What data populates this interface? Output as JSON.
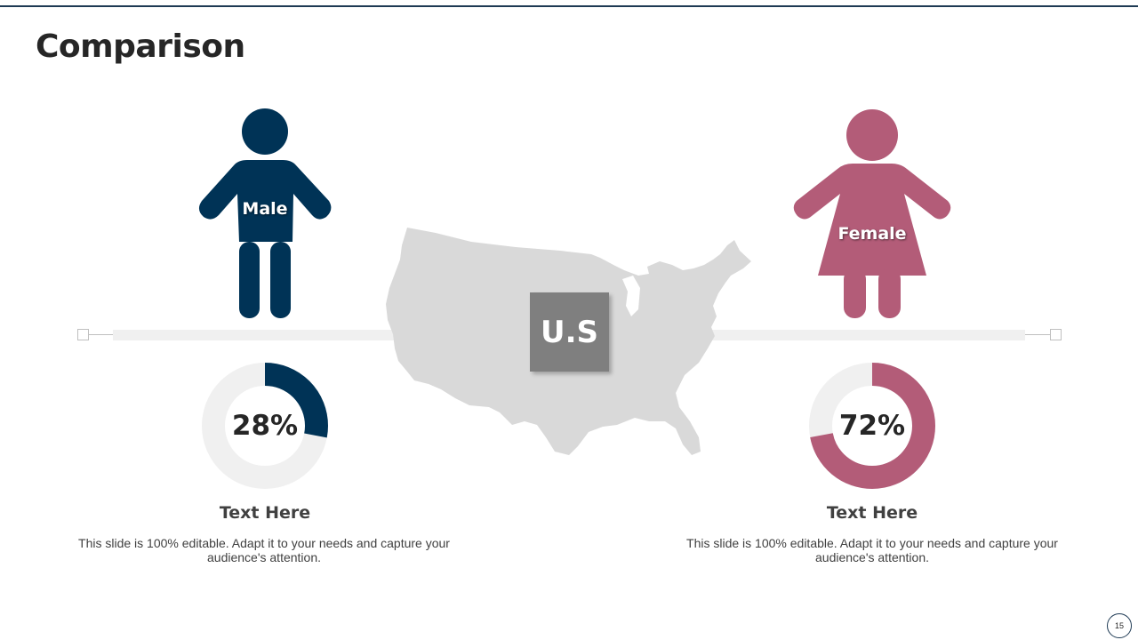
{
  "slide": {
    "title": "Comparison",
    "page_number": "15",
    "center_label": "U.S"
  },
  "male": {
    "label": "Male",
    "percent_text": "28%",
    "percent_value": 28,
    "heading": "Text Here",
    "description": "This slide is 100% editable. Adapt it to your needs and capture your audience's attention.",
    "color": "#003356",
    "icon": "male-person-icon"
  },
  "female": {
    "label": "Female",
    "percent_text": "72%",
    "percent_value": 72,
    "heading": "Text Here",
    "description": "This slide is 100% editable. Adapt it to your needs and capture your audience's attention.",
    "color": "#b35c78",
    "icon": "female-person-icon"
  },
  "colors": {
    "track": "#f0f0f0",
    "map": "#d9d9d9",
    "center_box": "#7f7f7f",
    "accent_line": "#1e3a54"
  }
}
